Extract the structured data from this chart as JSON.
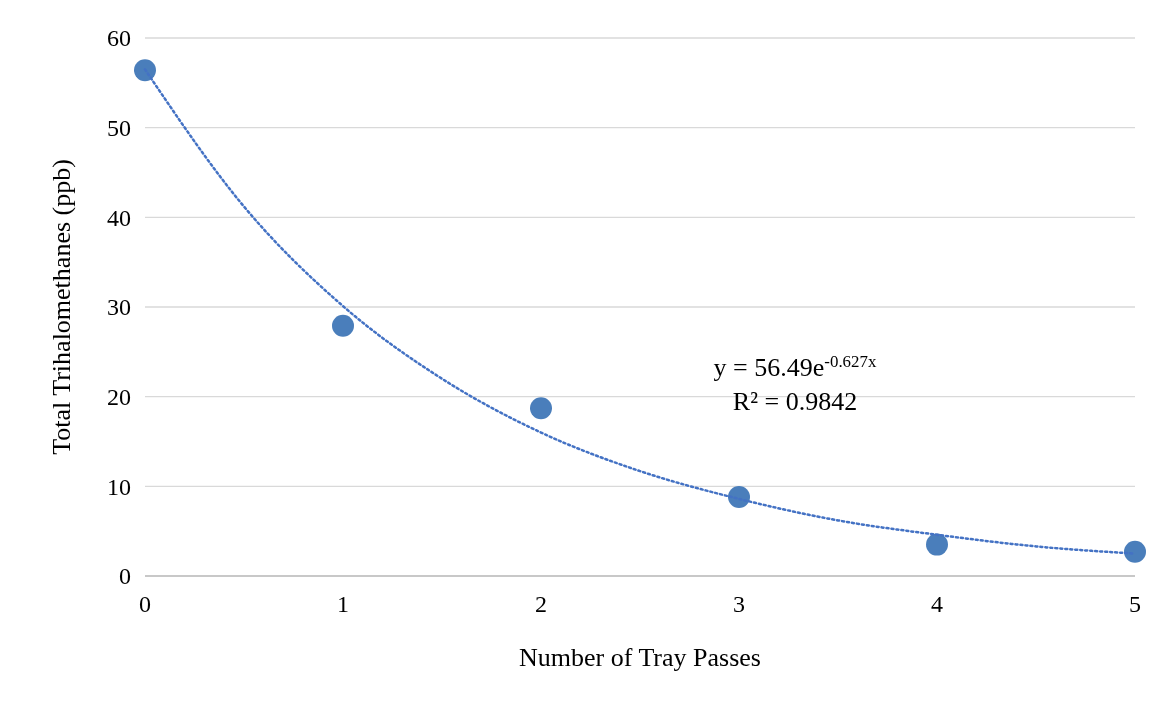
{
  "chart_data": {
    "type": "scatter",
    "xlabel": "Number of Tray Passes",
    "ylabel": "Total Trihalomethanes (ppb)",
    "xlim": [
      0,
      5
    ],
    "xticks": [
      0,
      1,
      2,
      3,
      4,
      5
    ],
    "ylim": [
      0,
      60
    ],
    "yticks": [
      0,
      10,
      20,
      30,
      40,
      50,
      60
    ],
    "grid": "y",
    "marker": "circle",
    "series": [
      {
        "color": "#4a7ebb",
        "x": [
          0,
          1,
          2,
          3,
          4,
          5
        ],
        "values": [
          56.4,
          27.9,
          18.7,
          8.8,
          3.5,
          2.7
        ]
      },
      {
        "type": "line",
        "color": "#4472c4",
        "line_style": "dotted",
        "marker": "none",
        "x": [
          0,
          0.5,
          1,
          1.5,
          2,
          2.5,
          3,
          3.5,
          4,
          4.5,
          5
        ],
        "values": [
          56.5,
          41.2,
          30.1,
          22.0,
          16.0,
          11.7,
          8.6,
          6.2,
          4.6,
          3.3,
          2.5
        ]
      }
    ],
    "annotations": [
      "y = 56.49e$^{-0.627x}$",
      "R² = 0.9842"
    ]
  }
}
